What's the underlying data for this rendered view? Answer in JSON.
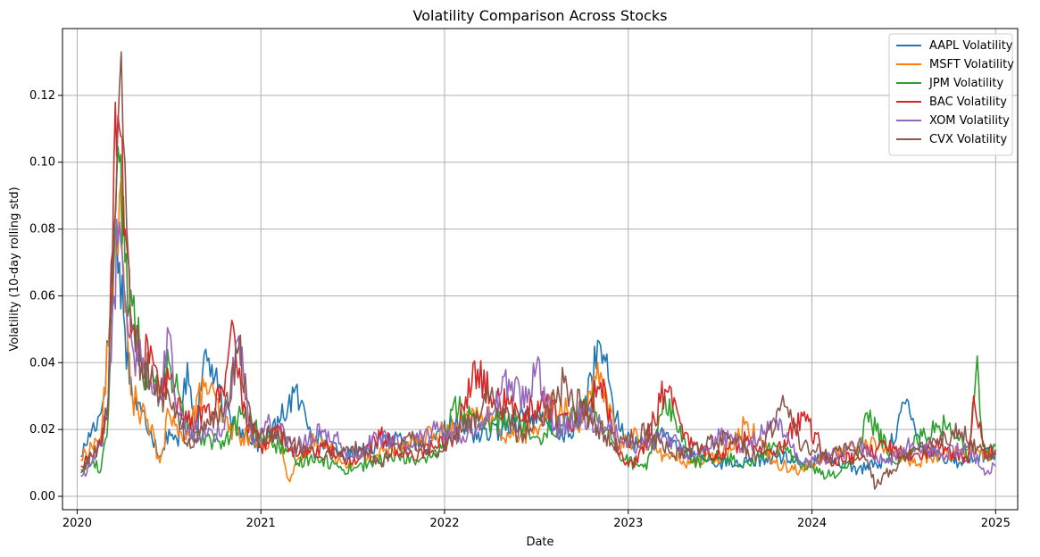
{
  "chart_data": {
    "type": "line",
    "title": "Volatility Comparison Across Stocks",
    "xlabel": "Date",
    "ylabel": "Volatility (10-day rolling std)",
    "xlim": [
      2019.92,
      2025.12
    ],
    "ylim": [
      -0.004,
      0.14
    ],
    "xticks": [
      2020,
      2021,
      2022,
      2023,
      2024,
      2025
    ],
    "xtick_labels": [
      "2020",
      "2021",
      "2022",
      "2023",
      "2024",
      "2025"
    ],
    "yticks": [
      0.0,
      0.02,
      0.04,
      0.06,
      0.08,
      0.1,
      0.12
    ],
    "ytick_labels": [
      "0.00",
      "0.02",
      "0.04",
      "0.06",
      "0.08",
      "0.10",
      "0.12"
    ],
    "grid": true,
    "legend_position": "top-right",
    "series": [
      {
        "name": "AAPL Volatility",
        "color": "#1f77b4",
        "x": [
          2020.02,
          2020.08,
          2020.13,
          2020.17,
          2020.2,
          2020.23,
          2020.26,
          2020.3,
          2020.35,
          2020.4,
          2020.45,
          2020.5,
          2020.55,
          2020.6,
          2020.65,
          2020.7,
          2020.8,
          2020.9,
          2021.0,
          2021.1,
          2021.18,
          2021.3,
          2021.45,
          2021.6,
          2021.75,
          2021.9,
          2022.05,
          2022.2,
          2022.3,
          2022.45,
          2022.6,
          2022.7,
          2022.85,
          2022.95,
          2023.05,
          2023.2,
          2023.35,
          2023.5,
          2023.65,
          2023.8,
          2023.95,
          2024.1,
          2024.25,
          2024.4,
          2024.5,
          2024.6,
          2024.7,
          2024.8,
          2024.9,
          2025.0
        ],
        "values": [
          0.012,
          0.02,
          0.025,
          0.045,
          0.08,
          0.07,
          0.05,
          0.03,
          0.025,
          0.02,
          0.012,
          0.02,
          0.015,
          0.04,
          0.02,
          0.044,
          0.025,
          0.02,
          0.015,
          0.022,
          0.031,
          0.018,
          0.012,
          0.015,
          0.018,
          0.014,
          0.022,
          0.018,
          0.02,
          0.025,
          0.02,
          0.018,
          0.045,
          0.02,
          0.015,
          0.018,
          0.012,
          0.01,
          0.01,
          0.012,
          0.01,
          0.012,
          0.008,
          0.01,
          0.028,
          0.015,
          0.012,
          0.01,
          0.012,
          0.013
        ]
      },
      {
        "name": "MSFT Volatility",
        "color": "#ff7f0e",
        "x": [
          2020.02,
          2020.08,
          2020.13,
          2020.17,
          2020.2,
          2020.23,
          2020.26,
          2020.3,
          2020.35,
          2020.4,
          2020.45,
          2020.5,
          2020.55,
          2020.6,
          2020.7,
          2020.8,
          2020.9,
          2021.0,
          2021.1,
          2021.15,
          2021.3,
          2021.45,
          2021.6,
          2021.75,
          2021.9,
          2022.05,
          2022.2,
          2022.35,
          2022.5,
          2022.6,
          2022.75,
          2022.85,
          2022.95,
          2023.05,
          2023.2,
          2023.35,
          2023.5,
          2023.65,
          2023.8,
          2023.95,
          2024.1,
          2024.25,
          2024.4,
          2024.55,
          2024.7,
          2024.85,
          2025.0
        ],
        "values": [
          0.011,
          0.015,
          0.018,
          0.045,
          0.07,
          0.09,
          0.055,
          0.03,
          0.025,
          0.02,
          0.01,
          0.025,
          0.018,
          0.02,
          0.034,
          0.022,
          0.018,
          0.015,
          0.02,
          0.005,
          0.018,
          0.01,
          0.012,
          0.015,
          0.018,
          0.02,
          0.025,
          0.018,
          0.02,
          0.028,
          0.022,
          0.037,
          0.015,
          0.018,
          0.012,
          0.01,
          0.012,
          0.022,
          0.01,
          0.008,
          0.012,
          0.016,
          0.015,
          0.01,
          0.012,
          0.014,
          0.012
        ]
      },
      {
        "name": "JPM Volatility",
        "color": "#2ca02c",
        "x": [
          2020.02,
          2020.08,
          2020.13,
          2020.17,
          2020.2,
          2020.23,
          2020.26,
          2020.3,
          2020.35,
          2020.4,
          2020.45,
          2020.5,
          2020.6,
          2020.7,
          2020.8,
          2020.9,
          2021.0,
          2021.1,
          2021.2,
          2021.3,
          2021.45,
          2021.6,
          2021.75,
          2021.9,
          2022.0,
          2022.05,
          2022.2,
          2022.35,
          2022.5,
          2022.65,
          2022.8,
          2022.95,
          2023.1,
          2023.2,
          2023.35,
          2023.5,
          2023.65,
          2023.8,
          2023.95,
          2024.1,
          2024.25,
          2024.3,
          2024.45,
          2024.6,
          2024.75,
          2024.85,
          2024.9,
          2024.93,
          2025.0
        ],
        "values": [
          0.008,
          0.01,
          0.008,
          0.025,
          0.07,
          0.1,
          0.07,
          0.057,
          0.04,
          0.035,
          0.03,
          0.04,
          0.02,
          0.018,
          0.015,
          0.025,
          0.018,
          0.015,
          0.01,
          0.012,
          0.008,
          0.01,
          0.012,
          0.01,
          0.015,
          0.028,
          0.02,
          0.025,
          0.018,
          0.022,
          0.028,
          0.012,
          0.008,
          0.03,
          0.01,
          0.012,
          0.01,
          0.015,
          0.01,
          0.006,
          0.012,
          0.025,
          0.01,
          0.018,
          0.022,
          0.012,
          0.042,
          0.015,
          0.015
        ]
      },
      {
        "name": "BAC Volatility",
        "color": "#d62728",
        "x": [
          2020.02,
          2020.08,
          2020.13,
          2020.17,
          2020.2,
          2020.23,
          2020.26,
          2020.3,
          2020.35,
          2020.4,
          2020.45,
          2020.5,
          2020.6,
          2020.7,
          2020.8,
          2020.85,
          2020.9,
          2021.0,
          2021.1,
          2021.2,
          2021.35,
          2021.5,
          2021.65,
          2021.8,
          2021.95,
          2022.05,
          2022.18,
          2022.25,
          2022.4,
          2022.55,
          2022.7,
          2022.85,
          2022.95,
          2023.05,
          2023.2,
          2023.35,
          2023.5,
          2023.65,
          2023.8,
          2023.95,
          2024.1,
          2024.25,
          2024.4,
          2024.55,
          2024.7,
          2024.85,
          2024.88,
          2024.95,
          2025.0
        ],
        "values": [
          0.009,
          0.012,
          0.015,
          0.03,
          0.1,
          0.11,
          0.08,
          0.05,
          0.04,
          0.045,
          0.03,
          0.035,
          0.022,
          0.025,
          0.03,
          0.051,
          0.025,
          0.015,
          0.02,
          0.012,
          0.015,
          0.01,
          0.018,
          0.012,
          0.015,
          0.018,
          0.038,
          0.03,
          0.025,
          0.028,
          0.02,
          0.034,
          0.012,
          0.01,
          0.032,
          0.015,
          0.012,
          0.018,
          0.012,
          0.024,
          0.01,
          0.012,
          0.015,
          0.012,
          0.015,
          0.01,
          0.03,
          0.012,
          0.014
        ]
      },
      {
        "name": "XOM Volatility",
        "color": "#9467bd",
        "x": [
          2020.02,
          2020.08,
          2020.13,
          2020.17,
          2020.2,
          2020.23,
          2020.26,
          2020.3,
          2020.35,
          2020.4,
          2020.45,
          2020.5,
          2020.55,
          2020.6,
          2020.7,
          2020.8,
          2020.88,
          2020.95,
          2021.05,
          2021.2,
          2021.35,
          2021.5,
          2021.65,
          2021.8,
          2021.95,
          2022.1,
          2022.25,
          2022.35,
          2022.45,
          2022.5,
          2022.6,
          2022.75,
          2022.9,
          2023.05,
          2023.2,
          2023.35,
          2023.5,
          2023.65,
          2023.8,
          2023.95,
          2024.1,
          2024.25,
          2024.4,
          2024.55,
          2024.7,
          2024.85,
          2024.95,
          2025.0
        ],
        "values": [
          0.006,
          0.01,
          0.015,
          0.03,
          0.06,
          0.082,
          0.06,
          0.045,
          0.04,
          0.035,
          0.03,
          0.049,
          0.025,
          0.02,
          0.018,
          0.02,
          0.048,
          0.018,
          0.022,
          0.015,
          0.02,
          0.012,
          0.018,
          0.015,
          0.02,
          0.018,
          0.025,
          0.035,
          0.028,
          0.039,
          0.02,
          0.025,
          0.02,
          0.015,
          0.018,
          0.012,
          0.018,
          0.015,
          0.022,
          0.01,
          0.012,
          0.015,
          0.01,
          0.016,
          0.012,
          0.015,
          0.007,
          0.009
        ]
      },
      {
        "name": "CVX Volatility",
        "color": "#8c564b",
        "x": [
          2020.02,
          2020.08,
          2020.13,
          2020.17,
          2020.2,
          2020.22,
          2020.24,
          2020.26,
          2020.28,
          2020.3,
          2020.35,
          2020.4,
          2020.45,
          2020.5,
          2020.6,
          2020.7,
          2020.8,
          2020.88,
          2020.95,
          2021.05,
          2021.2,
          2021.35,
          2021.5,
          2021.65,
          2021.8,
          2021.95,
          2022.1,
          2022.25,
          2022.4,
          2022.55,
          2022.65,
          2022.8,
          2022.95,
          2023.1,
          2023.25,
          2023.4,
          2023.55,
          2023.7,
          2023.85,
          2023.95,
          2024.1,
          2024.25,
          2024.35,
          2024.5,
          2024.65,
          2024.8,
          2024.95,
          2025.0
        ],
        "values": [
          0.007,
          0.012,
          0.016,
          0.03,
          0.08,
          0.108,
          0.133,
          0.1,
          0.07,
          0.05,
          0.04,
          0.035,
          0.03,
          0.03,
          0.015,
          0.02,
          0.025,
          0.045,
          0.02,
          0.018,
          0.015,
          0.012,
          0.015,
          0.01,
          0.018,
          0.012,
          0.02,
          0.03,
          0.018,
          0.025,
          0.034,
          0.022,
          0.015,
          0.02,
          0.012,
          0.015,
          0.018,
          0.012,
          0.027,
          0.015,
          0.012,
          0.015,
          0.003,
          0.012,
          0.015,
          0.02,
          0.012,
          0.013
        ]
      }
    ]
  }
}
